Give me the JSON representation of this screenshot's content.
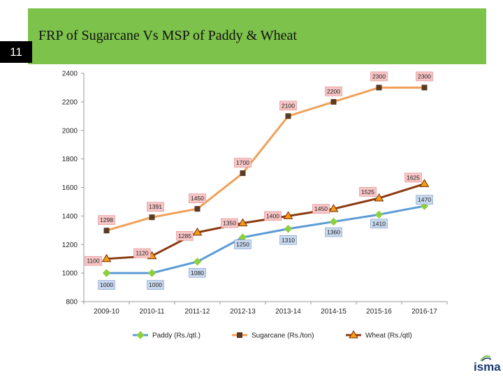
{
  "slide": {
    "title": "FRP of Sugarcane Vs MSP of Paddy & Wheat",
    "number": "11",
    "logo_text": "isma"
  },
  "colors": {
    "header_band": "#7dc24b",
    "paddy": "#5b9bd5",
    "paddy_marker": "#8ccf3f",
    "sugarcane": "#f0a05a",
    "sugarcane_marker": "#5a3a22",
    "wheat": "#8b3a12",
    "wheat_marker": "#f39c12",
    "label_red_bg": "#f7c5c5",
    "label_blue_bg": "#c8d8ee"
  },
  "chart_data": {
    "type": "line",
    "categories": [
      "2009-10",
      "2010-11",
      "2011-12",
      "2012-13",
      "2013-14",
      "2014-15",
      "2015-16",
      "2016-17"
    ],
    "ylim": [
      800,
      2400
    ],
    "yticks": [
      800,
      1000,
      1200,
      1400,
      1600,
      1800,
      2000,
      2200,
      2400
    ],
    "grid": false,
    "legend_position": "bottom",
    "series": [
      {
        "name": "Paddy (Rs./qtl.)",
        "values": [
          1000,
          1000,
          1080,
          1250,
          1310,
          1360,
          1410,
          1470
        ],
        "labels": [
          "1000",
          "1000",
          "1080",
          "1250",
          "1310",
          "1360",
          "1410",
          "1470"
        ]
      },
      {
        "name": "Sugarcane (Rs./ton)",
        "values": [
          1298,
          1391,
          1450,
          1700,
          2100,
          2200,
          2300,
          2300
        ],
        "labels": [
          "1298",
          "1391",
          "1450",
          "1700",
          "2100",
          "2200",
          "2300",
          "2300"
        ]
      },
      {
        "name": "Wheat (Rs./qtl)",
        "values": [
          1100,
          1120,
          1285,
          1350,
          1400,
          1450,
          1525,
          1625
        ],
        "labels": [
          "1100",
          "1120",
          "1285",
          "1350",
          "1400",
          "1450",
          "1525",
          "1625"
        ]
      }
    ]
  }
}
